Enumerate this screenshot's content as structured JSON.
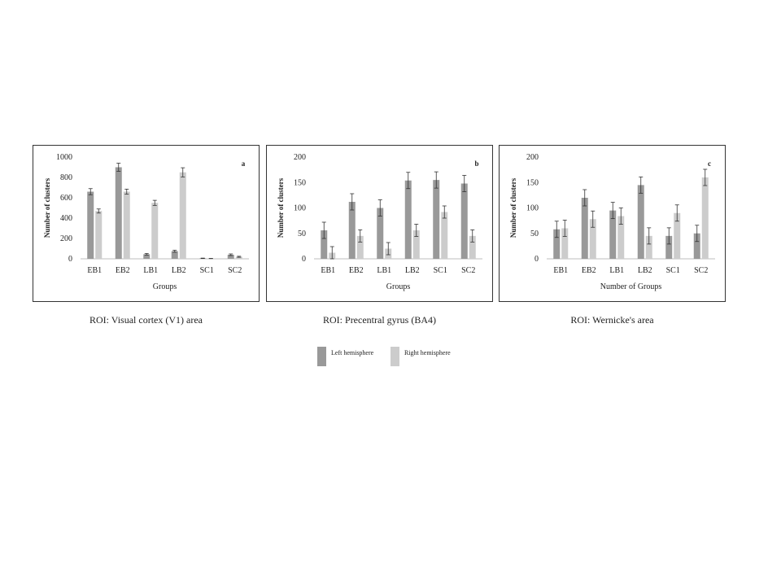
{
  "colors": {
    "left": "#999999",
    "right": "#cccccc",
    "error": "#333333",
    "axis": "#bfbfbf",
    "text": "#222222"
  },
  "legend": [
    {
      "label": "Left hemisphere",
      "color": "#999999"
    },
    {
      "label": "Right hemisphere",
      "color": "#cccccc"
    }
  ],
  "chart_data": [
    {
      "type": "bar",
      "panel_letter": "a",
      "caption": "ROI: Visual cortex (V1) area",
      "xlabel": "Groups",
      "ylabel": "Number of clusters",
      "ylim": [
        0,
        1000
      ],
      "yticks": [
        0,
        200,
        400,
        600,
        800,
        1000
      ],
      "categories": [
        "EB1",
        "EB2",
        "LB1",
        "LB2",
        "SC1",
        "SC2"
      ],
      "series": [
        {
          "name": "Left hemisphere",
          "values": [
            660,
            900,
            45,
            75,
            5,
            40
          ],
          "errors": [
            30,
            40,
            8,
            10,
            2,
            8
          ]
        },
        {
          "name": "Right hemisphere",
          "values": [
            470,
            660,
            550,
            850,
            3,
            20
          ],
          "errors": [
            20,
            25,
            25,
            45,
            1,
            5
          ]
        }
      ]
    },
    {
      "type": "bar",
      "panel_letter": "b",
      "caption": "ROI: Precentral gyrus (BA4)",
      "xlabel": "Groups",
      "ylabel": "Number of clusters",
      "ylim": [
        0,
        200
      ],
      "yticks": [
        0,
        50,
        100,
        150,
        200
      ],
      "categories": [
        "EB1",
        "EB2",
        "LB1",
        "LB2",
        "SC1",
        "SC2"
      ],
      "series": [
        {
          "name": "Left hemisphere",
          "values": [
            56,
            112,
            100,
            154,
            155,
            148
          ],
          "errors": [
            16,
            16,
            16,
            16,
            16,
            16
          ]
        },
        {
          "name": "Right hemisphere",
          "values": [
            12,
            45,
            20,
            56,
            92,
            45
          ],
          "errors": [
            12,
            12,
            12,
            12,
            12,
            12
          ]
        }
      ]
    },
    {
      "type": "bar",
      "panel_letter": "c",
      "caption": "ROI: Wernicke's area",
      "xlabel": "Number of Groups",
      "ylabel": "Number of clusters",
      "ylim": [
        0,
        200
      ],
      "yticks": [
        0,
        50,
        100,
        150,
        200
      ],
      "categories": [
        "EB1",
        "EB2",
        "LB1",
        "LB2",
        "SC1",
        "SC2"
      ],
      "series": [
        {
          "name": "Left hemisphere",
          "values": [
            58,
            120,
            95,
            145,
            45,
            50
          ],
          "errors": [
            16,
            16,
            16,
            16,
            16,
            16
          ]
        },
        {
          "name": "Right hemisphere",
          "values": [
            60,
            78,
            84,
            45,
            90,
            160
          ],
          "errors": [
            16,
            16,
            16,
            16,
            16,
            16
          ]
        }
      ]
    }
  ]
}
